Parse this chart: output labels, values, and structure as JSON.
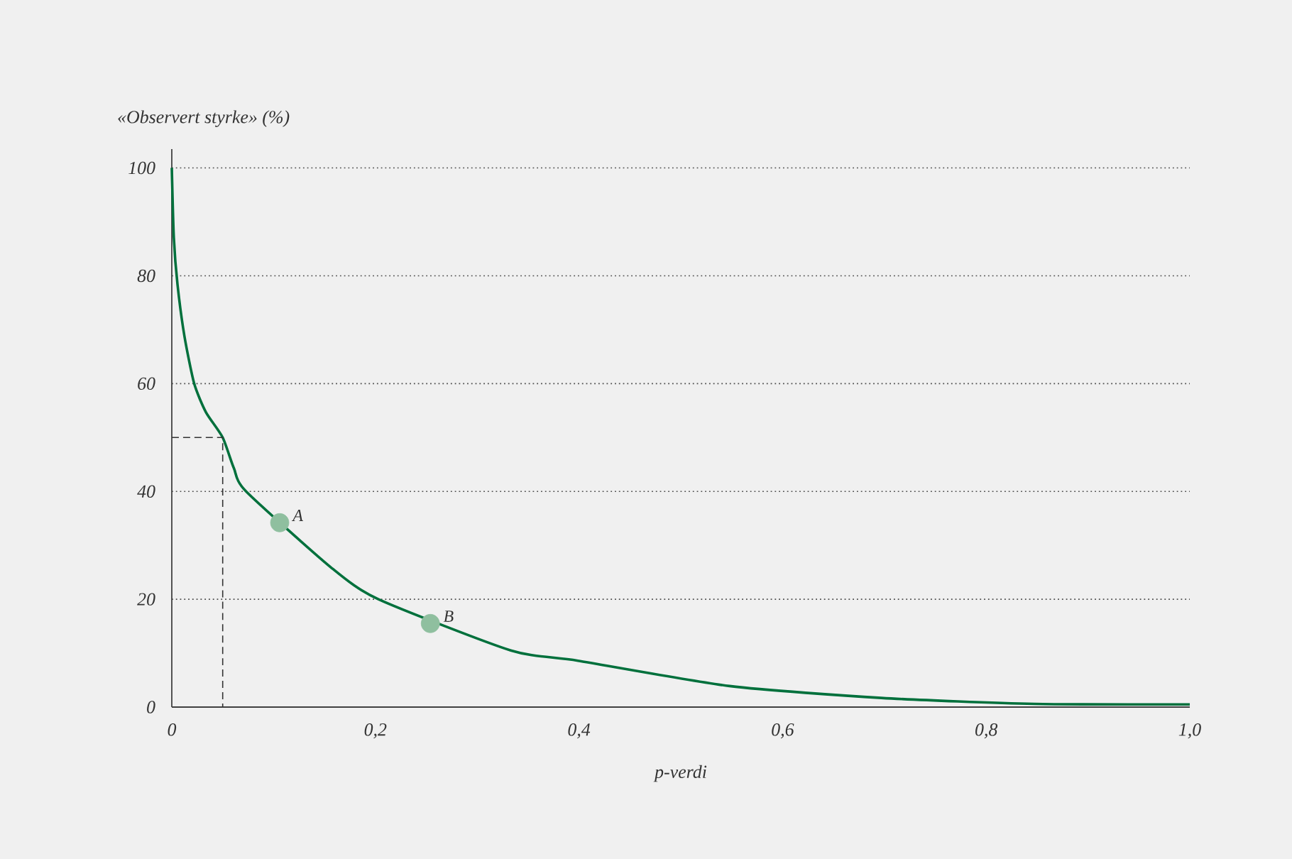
{
  "chart_data": {
    "type": "line",
    "xlabel": "p-verdi",
    "ylabel": "«Observert styrke» (%)",
    "xlim": [
      0,
      1
    ],
    "ylim": [
      0,
      103.5
    ],
    "xticks": [
      0,
      {
        "value": 0.2,
        "label": "0,2"
      },
      {
        "value": 0.4,
        "label": "0,4"
      },
      {
        "value": 0.6,
        "label": "0,6"
      },
      {
        "value": 0.8,
        "label": "0,8"
      },
      {
        "value": 1.0,
        "label": "1,0"
      }
    ],
    "yticks": [
      0,
      20,
      40,
      60,
      80,
      100
    ],
    "grid": "y",
    "legend": false,
    "series": [
      {
        "color": "#00703c",
        "line_style": "solid",
        "x": [
          0,
          0.002,
          0.0056,
          0.0125,
          0.022,
          0.0335,
          0.05,
          0.061,
          0.073,
          0.157,
          0.203,
          0.333,
          0.399,
          0.548,
          0.697,
          0.847,
          1.0
        ],
        "values": [
          100,
          87.1,
          78.4,
          68.7,
          60,
          54.7,
          50,
          44.3,
          40,
          25.8,
          20,
          10.5,
          8.6,
          3.9,
          1.7,
          0.6,
          0.5
        ]
      },
      {
        "type": "line",
        "color": "#333333",
        "line_style": "dashed",
        "x": [
          0,
          0.05,
          0.05
        ],
        "values": [
          50,
          50,
          0
        ]
      },
      {
        "name": "A",
        "type": "scatter",
        "color": "#8fbf9f",
        "x": [
          0.106
        ],
        "values": [
          34.2
        ]
      },
      {
        "name": "B",
        "type": "scatter",
        "color": "#8fbf9f",
        "x": [
          0.254
        ],
        "values": [
          15.5
        ]
      }
    ]
  }
}
